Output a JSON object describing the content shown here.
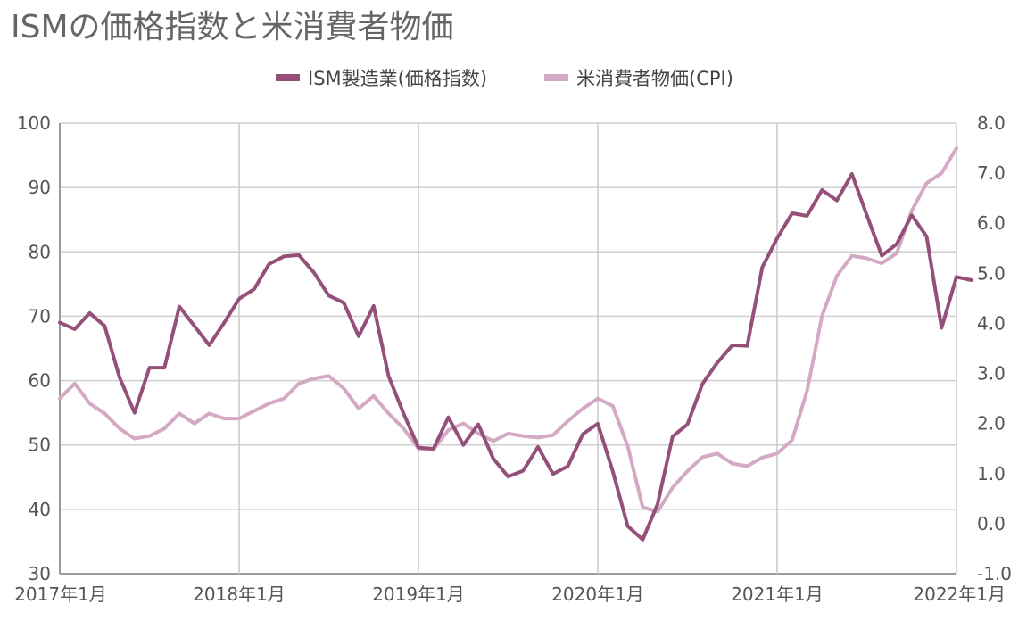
{
  "chart_data": {
    "type": "line",
    "title": "ISMの価格指数と米消費者物価",
    "legend_position": "top-center",
    "grid": true,
    "x_start": "2017年1月",
    "x_ticks": [
      "2017年1月",
      "2018年1月",
      "2019年1月",
      "2020年1月",
      "2021年1月",
      "2022年1月"
    ],
    "y_left": {
      "range": [
        30,
        100
      ],
      "ticks": [
        "100",
        "90",
        "80",
        "70",
        "60",
        "50",
        "40",
        "30"
      ]
    },
    "y_right": {
      "range": [
        -1.0,
        8.0
      ],
      "ticks": [
        "8.0",
        "7.0",
        "6.0",
        "5.0",
        "4.0",
        "3.0",
        "2.0",
        "1.0",
        "0.0",
        "-1.0"
      ]
    },
    "series": [
      {
        "name": "ISM製造業(価格指数)",
        "axis": "left",
        "color": "#95507a",
        "values": [
          69.0,
          68.0,
          70.5,
          68.5,
          60.5,
          55.0,
          62.0,
          62.0,
          71.5,
          68.5,
          65.5,
          69.0,
          72.7,
          74.2,
          78.1,
          79.3,
          79.5,
          76.8,
          73.2,
          72.1,
          66.9,
          71.6,
          60.7,
          54.9,
          49.6,
          49.4,
          54.3,
          50.0,
          53.2,
          47.9,
          45.1,
          46.0,
          49.7,
          45.5,
          46.7,
          51.7,
          53.3,
          45.9,
          37.4,
          35.3,
          40.8,
          51.3,
          53.2,
          59.5,
          62.8,
          65.5,
          65.4,
          77.6,
          82.1,
          86.0,
          85.6,
          89.6,
          88.0,
          92.1,
          85.7,
          79.4,
          81.2,
          85.7,
          82.4,
          68.2,
          76.1,
          75.6
        ]
      },
      {
        "name": "米消費者物価(CPI)",
        "axis": "right",
        "color": "#d4a9c4",
        "values": [
          2.5,
          2.8,
          2.4,
          2.2,
          1.9,
          1.7,
          1.75,
          1.9,
          2.2,
          2.0,
          2.2,
          2.1,
          2.1,
          2.25,
          2.4,
          2.5,
          2.8,
          2.9,
          2.95,
          2.7,
          2.3,
          2.55,
          2.2,
          1.9,
          1.5,
          1.48,
          1.87,
          2.0,
          1.8,
          1.65,
          1.8,
          1.75,
          1.72,
          1.77,
          2.05,
          2.3,
          2.5,
          2.35,
          1.55,
          0.33,
          0.24,
          0.72,
          1.05,
          1.33,
          1.4,
          1.2,
          1.15,
          1.32,
          1.4,
          1.67,
          2.65,
          4.15,
          4.95,
          5.35,
          5.3,
          5.2,
          5.4,
          6.25,
          6.8,
          7.0,
          7.5
        ]
      }
    ]
  }
}
